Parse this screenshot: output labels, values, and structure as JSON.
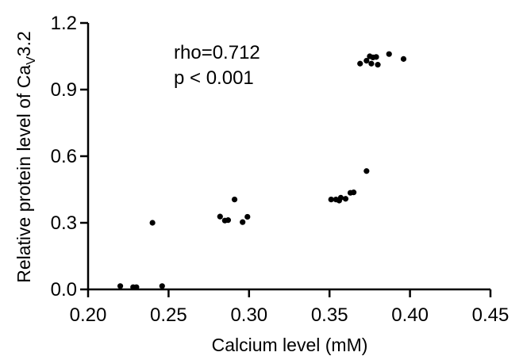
{
  "chart_data": {
    "type": "scatter",
    "title": "",
    "xlabel": "Calcium level (mM)",
    "ylabel": {
      "prefix": "Relative protein level of Ca",
      "subscript": "V",
      "suffix": "3.2"
    },
    "xlim": [
      0.2,
      0.45
    ],
    "ylim": [
      0.0,
      1.2
    ],
    "xticks": [
      "0.20",
      "0.25",
      "0.30",
      "0.35",
      "0.40",
      "0.45"
    ],
    "yticks": [
      "0.0",
      "0.3",
      "0.6",
      "0.9",
      "1.2"
    ],
    "grid": false,
    "legend": "none",
    "point_color": "#000000",
    "annotations": [
      "rho=0.712",
      "p < 0.001"
    ],
    "series": [
      {
        "points": [
          [
            0.22,
            0.015
          ],
          [
            0.228,
            0.01
          ],
          [
            0.23,
            0.01
          ],
          [
            0.24,
            0.3
          ],
          [
            0.246,
            0.015
          ],
          [
            0.282,
            0.328
          ],
          [
            0.285,
            0.31
          ],
          [
            0.287,
            0.312
          ],
          [
            0.291,
            0.405
          ],
          [
            0.296,
            0.303
          ],
          [
            0.299,
            0.327
          ],
          [
            0.351,
            0.405
          ],
          [
            0.354,
            0.405
          ],
          [
            0.356,
            0.4
          ],
          [
            0.357,
            0.413
          ],
          [
            0.36,
            0.408
          ],
          [
            0.363,
            0.435
          ],
          [
            0.365,
            0.437
          ],
          [
            0.369,
            1.017
          ],
          [
            0.373,
            1.03
          ],
          [
            0.373,
            0.533
          ],
          [
            0.375,
            1.05
          ],
          [
            0.376,
            1.017
          ],
          [
            0.377,
            1.045
          ],
          [
            0.379,
            1.047
          ],
          [
            0.38,
            1.012
          ],
          [
            0.387,
            1.06
          ],
          [
            0.396,
            1.038
          ]
        ]
      }
    ]
  }
}
